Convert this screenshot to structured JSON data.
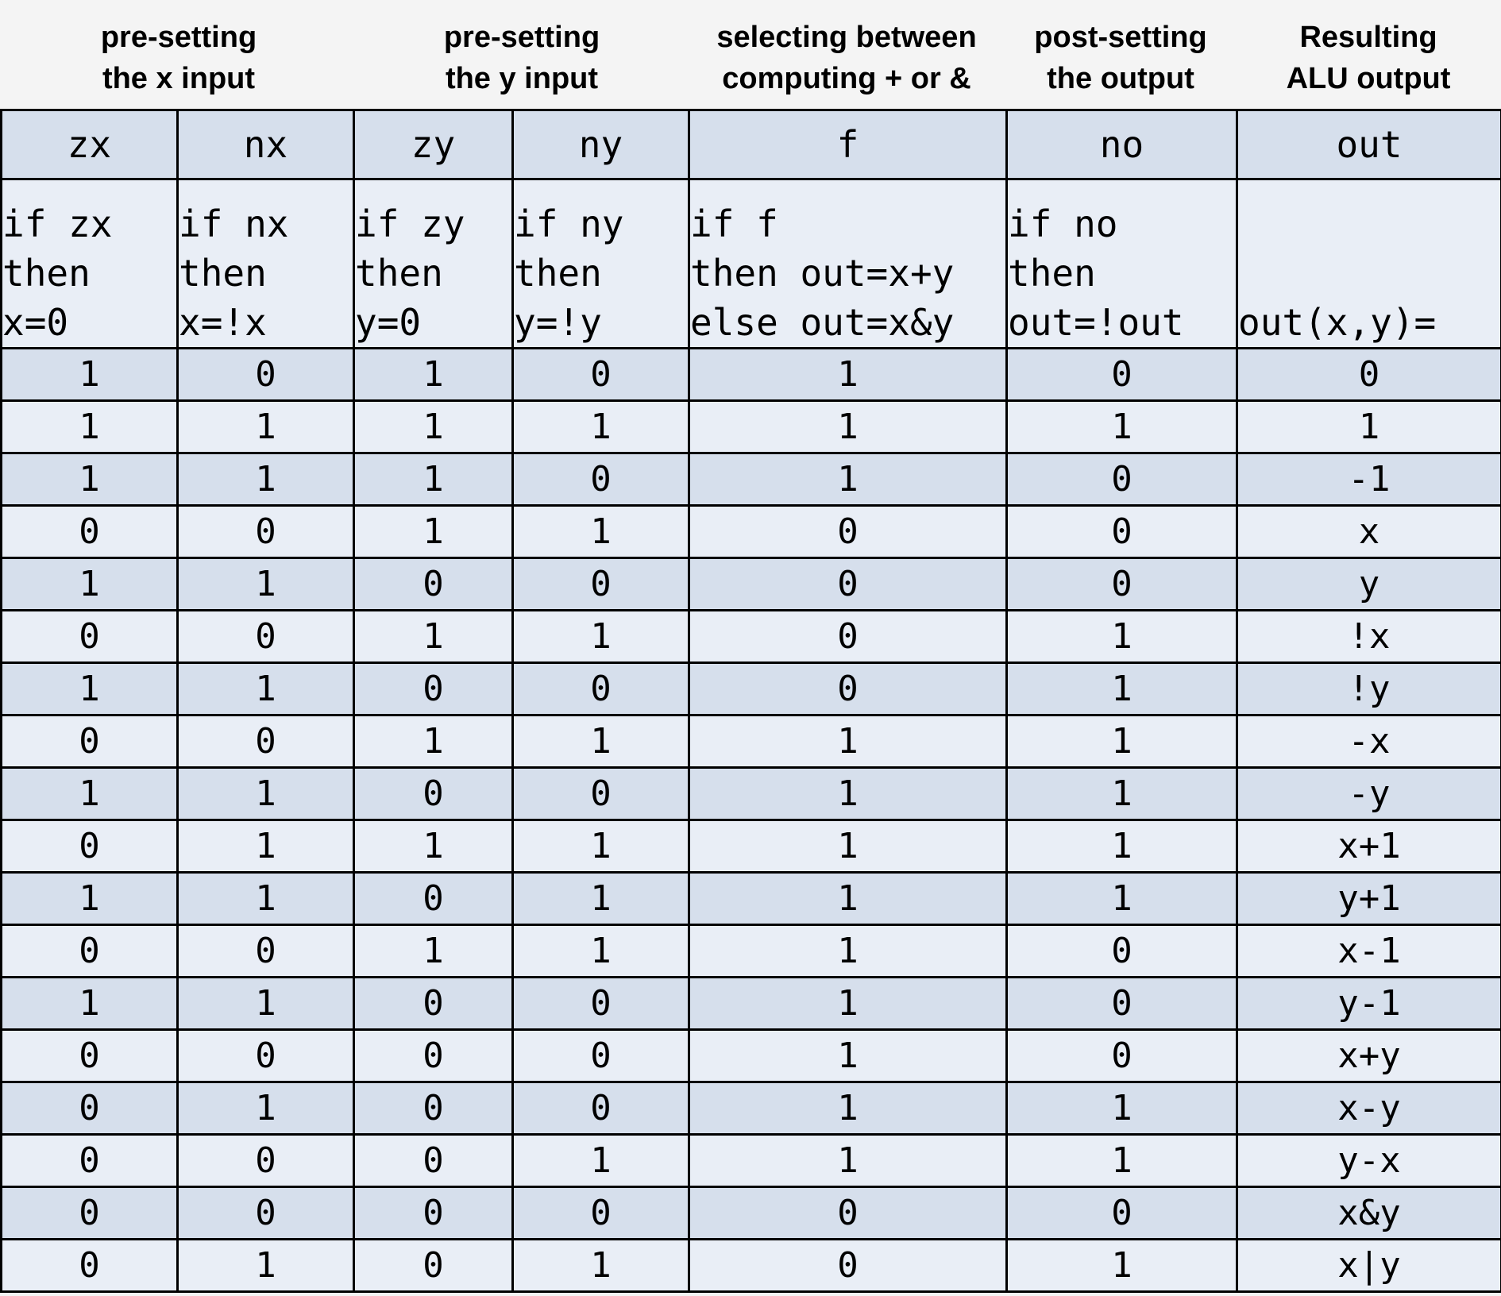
{
  "groups": [
    {
      "id": "g1",
      "text": "pre-setting\nthe x input"
    },
    {
      "id": "g2",
      "text": "pre-setting\nthe y input"
    },
    {
      "id": "g3",
      "text": "selecting between\ncomputing + or &"
    },
    {
      "id": "g4",
      "text": "post-setting\nthe output"
    },
    {
      "id": "g5",
      "text": "Resulting\nALU output"
    }
  ],
  "columns": [
    {
      "name": "zx",
      "description": "if zx\nthen\nx=0"
    },
    {
      "name": "nx",
      "description": "if nx\nthen\nx=!x"
    },
    {
      "name": "zy",
      "description": "if zy\nthen\ny=0"
    },
    {
      "name": "ny",
      "description": "if ny\nthen\ny=!y"
    },
    {
      "name": "f",
      "description": "if f\nthen out=x+y\nelse out=x&y"
    },
    {
      "name": "no",
      "description": "if no\nthen\nout=!out"
    },
    {
      "name": "out",
      "description": "out(x,y)="
    }
  ],
  "rows": [
    {
      "bits": [
        "1",
        "0",
        "1",
        "0",
        "1",
        "0"
      ],
      "out": "0"
    },
    {
      "bits": [
        "1",
        "1",
        "1",
        "1",
        "1",
        "1"
      ],
      "out": "1"
    },
    {
      "bits": [
        "1",
        "1",
        "1",
        "0",
        "1",
        "0"
      ],
      "out": "-1"
    },
    {
      "bits": [
        "0",
        "0",
        "1",
        "1",
        "0",
        "0"
      ],
      "out": "x"
    },
    {
      "bits": [
        "1",
        "1",
        "0",
        "0",
        "0",
        "0"
      ],
      "out": "y"
    },
    {
      "bits": [
        "0",
        "0",
        "1",
        "1",
        "0",
        "1"
      ],
      "out": "!x"
    },
    {
      "bits": [
        "1",
        "1",
        "0",
        "0",
        "0",
        "1"
      ],
      "out": "!y"
    },
    {
      "bits": [
        "0",
        "0",
        "1",
        "1",
        "1",
        "1"
      ],
      "out": "-x"
    },
    {
      "bits": [
        "1",
        "1",
        "0",
        "0",
        "1",
        "1"
      ],
      "out": "-y"
    },
    {
      "bits": [
        "0",
        "1",
        "1",
        "1",
        "1",
        "1"
      ],
      "out": "x+1"
    },
    {
      "bits": [
        "1",
        "1",
        "0",
        "1",
        "1",
        "1"
      ],
      "out": "y+1"
    },
    {
      "bits": [
        "0",
        "0",
        "1",
        "1",
        "1",
        "0"
      ],
      "out": "x-1"
    },
    {
      "bits": [
        "1",
        "1",
        "0",
        "0",
        "1",
        "0"
      ],
      "out": "y-1"
    },
    {
      "bits": [
        "0",
        "0",
        "0",
        "0",
        "1",
        "0"
      ],
      "out": "x+y"
    },
    {
      "bits": [
        "0",
        "1",
        "0",
        "0",
        "1",
        "1"
      ],
      "out": "x-y"
    },
    {
      "bits": [
        "0",
        "0",
        "0",
        "1",
        "1",
        "1"
      ],
      "out": "y-x"
    },
    {
      "bits": [
        "0",
        "0",
        "0",
        "0",
        "0",
        "0"
      ],
      "out": "x&y"
    },
    {
      "bits": [
        "0",
        "1",
        "0",
        "1",
        "0",
        "1"
      ],
      "out": "x|y"
    }
  ],
  "colors": {
    "dark_row": "#d6dfec",
    "light_row": "#e9eef6",
    "background": "#f4f4f4",
    "border": "#000000"
  }
}
